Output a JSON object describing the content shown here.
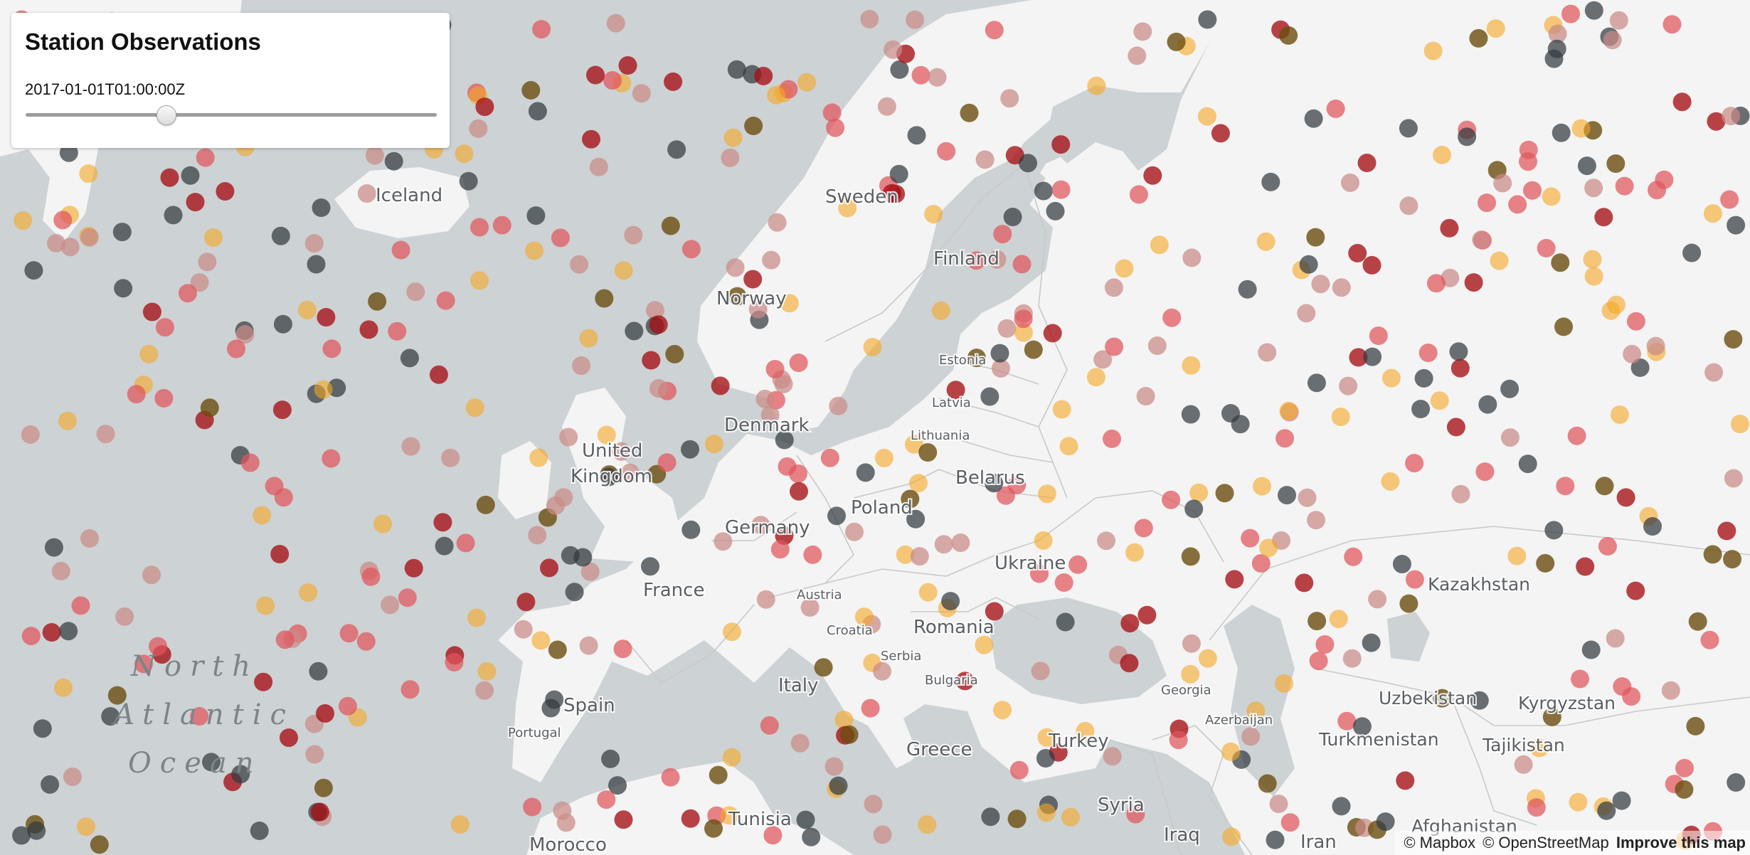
{
  "panel": {
    "title": "Station Observations",
    "timestamp": "2017-01-01T01:00:00Z",
    "slider_position": 0.33
  },
  "attribution": {
    "mapbox": "© Mapbox",
    "osm": "© OpenStreetMap",
    "improve": "Improve this map"
  },
  "labels": {
    "iceland": "Iceland",
    "sweden": "Sweden",
    "finland": "Finland",
    "norway": "Norway",
    "estonia": "Estonia",
    "latvia": "Latvia",
    "lithuania": "Lithuania",
    "denmark": "Denmark",
    "united_kingdom_1": "United",
    "united_kingdom_2": "Kingdom",
    "belarus": "Belarus",
    "poland": "Poland",
    "germany": "Germany",
    "ukraine": "Ukraine",
    "france": "France",
    "austria": "Austria",
    "kazakhstan": "Kazakhstan",
    "romania": "Romania",
    "croatia": "Croatia",
    "serbia": "Serbia",
    "bulgaria": "Bulgaria",
    "italy": "Italy",
    "spain": "Spain",
    "portugal": "Portugal",
    "georgia": "Georgia",
    "azerbaijan": "Azerbaijan",
    "uzbekistan": "Uzbekistan",
    "kyrgyzstan": "Kyrgyzstan",
    "turkmenistan": "Turkmenistan",
    "tajikistan": "Tajikistan",
    "turkey": "Turkey",
    "greece": "Greece",
    "syria": "Syria",
    "tunisia": "Tunisia",
    "iraq": "Iraq",
    "iran": "Iran",
    "afghanistan": "Afghanistan",
    "morocco": "Morocco",
    "ocean_line1": "North",
    "ocean_line2": "Atlantic",
    "ocean_line3": "Ocean"
  },
  "colors": {
    "water": "#cdd2d4",
    "land": "#f4f4f4",
    "border": "#c9c9c9",
    "marker_red": "#e0555c",
    "marker_pink": "#c98a86",
    "marker_orange": "#f5a623",
    "marker_dark": "#333a40",
    "marker_darkred": "#a50f15",
    "marker_olive": "#6b4e0f"
  }
}
